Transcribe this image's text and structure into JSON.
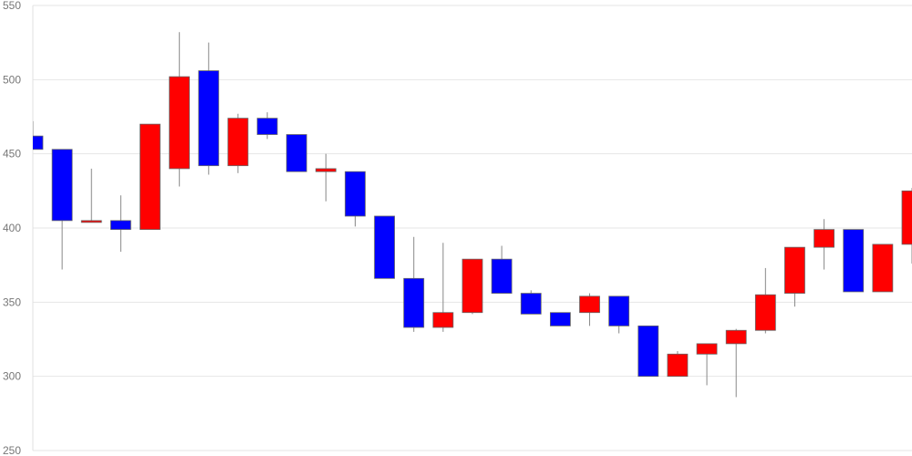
{
  "chart_data": {
    "type": "candlestick",
    "title": "",
    "xlabel": "",
    "ylabel": "",
    "ylim": [
      250,
      550
    ],
    "y_ticks": [
      "550",
      "500",
      "450",
      "400",
      "350",
      "300",
      "250"
    ],
    "grid": true,
    "colors": {
      "up": "#ff0000",
      "down": "#0000ff",
      "wick": "#888888",
      "grid": "#e6e6e6",
      "axis_text": "#777777"
    },
    "candles": [
      {
        "open": 462,
        "high": 472,
        "low": 453,
        "close": 453
      },
      {
        "open": 453,
        "high": 453,
        "low": 372,
        "close": 405
      },
      {
        "open": 405,
        "high": 440,
        "low": 405,
        "close": 405
      },
      {
        "open": 405,
        "high": 422,
        "low": 384,
        "close": 399
      },
      {
        "open": 399,
        "high": 470,
        "low": 399,
        "close": 470
      },
      {
        "open": 440,
        "high": 532,
        "low": 428,
        "close": 502
      },
      {
        "open": 506,
        "high": 525,
        "low": 436,
        "close": 442
      },
      {
        "open": 442,
        "high": 477,
        "low": 437,
        "close": 474
      },
      {
        "open": 474,
        "high": 478,
        "low": 460,
        "close": 463
      },
      {
        "open": 463,
        "high": 463,
        "low": 438,
        "close": 438
      },
      {
        "open": 438,
        "high": 450,
        "low": 418,
        "close": 440
      },
      {
        "open": 438,
        "high": 438,
        "low": 401,
        "close": 408
      },
      {
        "open": 408,
        "high": 408,
        "low": 366,
        "close": 366
      },
      {
        "open": 366,
        "high": 394,
        "low": 330,
        "close": 333
      },
      {
        "open": 333,
        "high": 390,
        "low": 330,
        "close": 343
      },
      {
        "open": 343,
        "high": 379,
        "low": 342,
        "close": 379
      },
      {
        "open": 379,
        "high": 388,
        "low": 356,
        "close": 356
      },
      {
        "open": 356,
        "high": 358,
        "low": 342,
        "close": 342
      },
      {
        "open": 343,
        "high": 343,
        "low": 334,
        "close": 334
      },
      {
        "open": 343,
        "high": 356,
        "low": 334,
        "close": 354
      },
      {
        "open": 354,
        "high": 354,
        "low": 329,
        "close": 334
      },
      {
        "open": 334,
        "high": 334,
        "low": 300,
        "close": 300
      },
      {
        "open": 300,
        "high": 317,
        "low": 300,
        "close": 315
      },
      {
        "open": 315,
        "high": 322,
        "low": 294,
        "close": 322
      },
      {
        "open": 322,
        "high": 332,
        "low": 286,
        "close": 331
      },
      {
        "open": 331,
        "high": 373,
        "low": 329,
        "close": 355
      },
      {
        "open": 356,
        "high": 387,
        "low": 347,
        "close": 387
      },
      {
        "open": 387,
        "high": 406,
        "low": 372,
        "close": 399
      },
      {
        "open": 399,
        "high": 399,
        "low": 357,
        "close": 357
      },
      {
        "open": 357,
        "high": 389,
        "low": 357,
        "close": 389
      },
      {
        "open": 389,
        "high": 427,
        "low": 376,
        "close": 425
      }
    ]
  }
}
